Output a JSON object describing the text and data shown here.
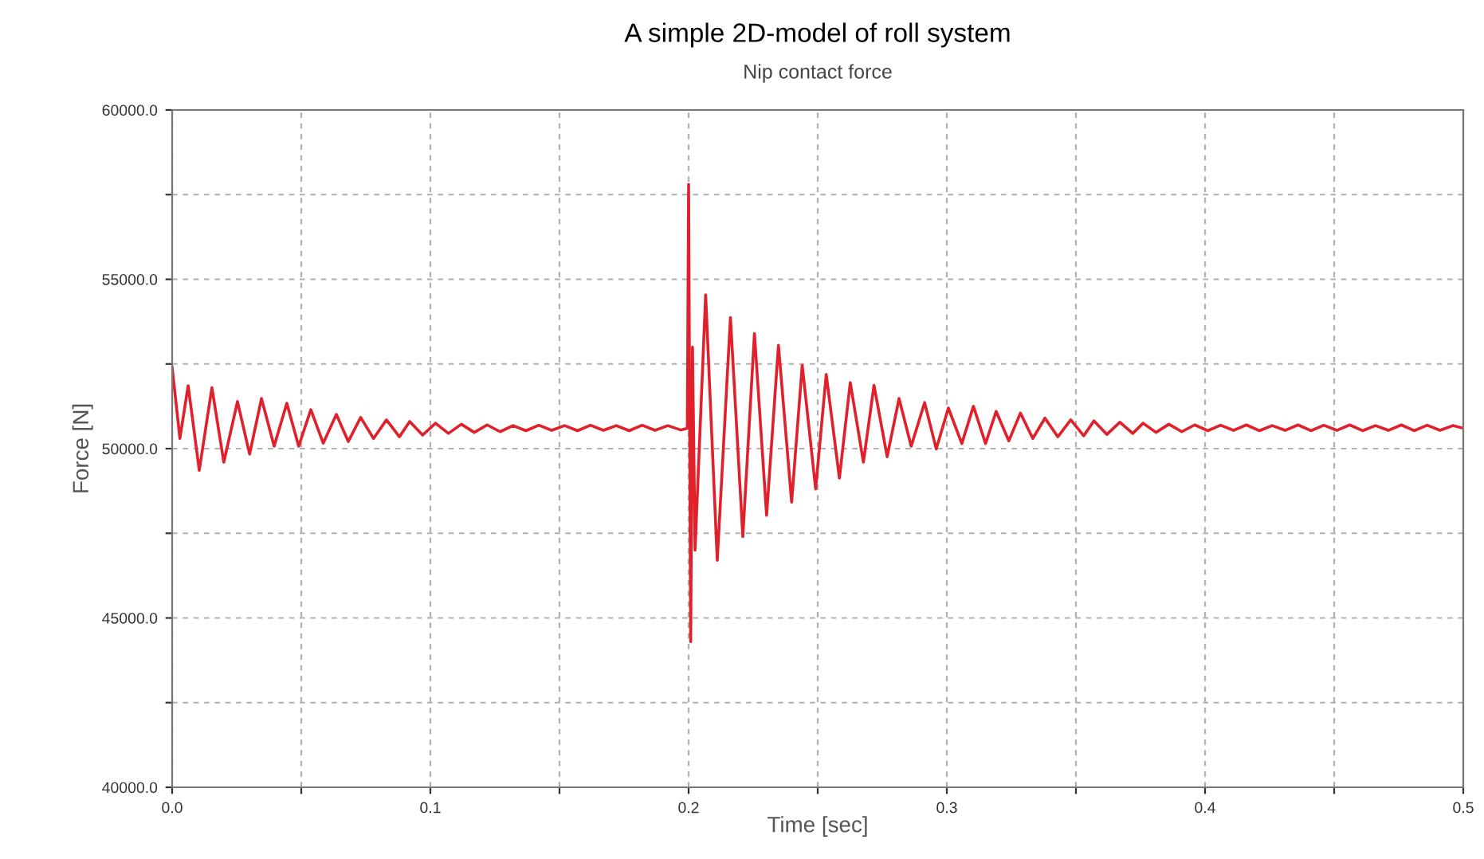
{
  "chart_data": {
    "type": "line",
    "title": "A simple 2D-model of roll system",
    "subtitle": "Nip contact force",
    "xlabel": "Time [sec]",
    "ylabel": "Force [N]",
    "xlim": [
      0,
      0.5
    ],
    "ylim": [
      40000,
      60000
    ],
    "xticks": [
      {
        "value": 0,
        "label": "0.0"
      },
      {
        "value": 0.05,
        "label": null
      },
      {
        "value": 0.1,
        "label": "0.1"
      },
      {
        "value": 0.15,
        "label": null
      },
      {
        "value": 0.2,
        "label": "0.2"
      },
      {
        "value": 0.25,
        "label": null
      },
      {
        "value": 0.3,
        "label": "0.3"
      },
      {
        "value": 0.35,
        "label": null
      },
      {
        "value": 0.4,
        "label": "0.4"
      },
      {
        "value": 0.45,
        "label": null
      },
      {
        "value": 0.5,
        "label": "0.5"
      }
    ],
    "yticks": [
      {
        "value": 40000,
        "label": "40000.0"
      },
      {
        "value": 42500,
        "label": null
      },
      {
        "value": 45000,
        "label": "45000.0"
      },
      {
        "value": 47500,
        "label": null
      },
      {
        "value": 50000,
        "label": "50000.0"
      },
      {
        "value": 52500,
        "label": null
      },
      {
        "value": 55000,
        "label": "55000.0"
      },
      {
        "value": 57500,
        "label": null
      },
      {
        "value": 60000,
        "label": "60000.0"
      }
    ],
    "grid": true,
    "legend": false,
    "marker": "none",
    "line_style": "solid",
    "series": [
      {
        "color": "#e0202a",
        "x": [
          0,
          0.003,
          0.0062,
          0.0105,
          0.0154,
          0.02,
          0.0253,
          0.03,
          0.0346,
          0.0395,
          0.0444,
          0.049,
          0.0537,
          0.0585,
          0.0636,
          0.0682,
          0.073,
          0.078,
          0.083,
          0.088,
          0.092,
          0.097,
          0.102,
          0.107,
          0.112,
          0.117,
          0.122,
          0.127,
          0.132,
          0.137,
          0.142,
          0.147,
          0.152,
          0.157,
          0.162,
          0.167,
          0.172,
          0.177,
          0.182,
          0.187,
          0.192,
          0.197,
          0.1995,
          0.2,
          0.2008,
          0.2015,
          0.2025,
          0.2066,
          0.2111,
          0.2162,
          0.221,
          0.2255,
          0.2302,
          0.2348,
          0.2399,
          0.244,
          0.2492,
          0.2533,
          0.2584,
          0.2626,
          0.2677,
          0.2718,
          0.2769,
          0.2815,
          0.2862,
          0.2914,
          0.2959,
          0.3006,
          0.3058,
          0.3103,
          0.315,
          0.3191,
          0.324,
          0.3285,
          0.3333,
          0.338,
          0.343,
          0.348,
          0.353,
          0.357,
          0.362,
          0.367,
          0.372,
          0.376,
          0.381,
          0.386,
          0.391,
          0.396,
          0.401,
          0.406,
          0.411,
          0.416,
          0.421,
          0.426,
          0.431,
          0.436,
          0.441,
          0.446,
          0.451,
          0.456,
          0.461,
          0.466,
          0.471,
          0.476,
          0.481,
          0.486,
          0.491,
          0.496,
          0.5
        ],
        "values": [
          52400,
          50300,
          51860,
          49360,
          51800,
          49600,
          51390,
          49840,
          51480,
          50070,
          51340,
          50070,
          51150,
          50160,
          51010,
          50210,
          50920,
          50300,
          50850,
          50350,
          50800,
          50400,
          50750,
          50450,
          50720,
          50480,
          50700,
          50500,
          50680,
          50530,
          50690,
          50540,
          50680,
          50530,
          50690,
          50540,
          50680,
          50530,
          50690,
          50540,
          50680,
          50550,
          50600,
          57800,
          44300,
          53000,
          47000,
          54540,
          46700,
          53870,
          47400,
          53400,
          48030,
          53050,
          48420,
          52460,
          48810,
          52190,
          49130,
          51950,
          49600,
          51870,
          49760,
          51480,
          50070,
          51360,
          49990,
          51200,
          50150,
          51250,
          50150,
          51100,
          50230,
          51050,
          50300,
          50900,
          50350,
          50850,
          50380,
          50820,
          50420,
          50780,
          50450,
          50750,
          50480,
          50720,
          50500,
          50700,
          50530,
          50690,
          50540,
          50700,
          50530,
          50680,
          50540,
          50700,
          50530,
          50690,
          50540,
          50700,
          50530,
          50680,
          50540,
          50700,
          50530,
          50690,
          50540,
          50680,
          50600
        ]
      }
    ]
  }
}
